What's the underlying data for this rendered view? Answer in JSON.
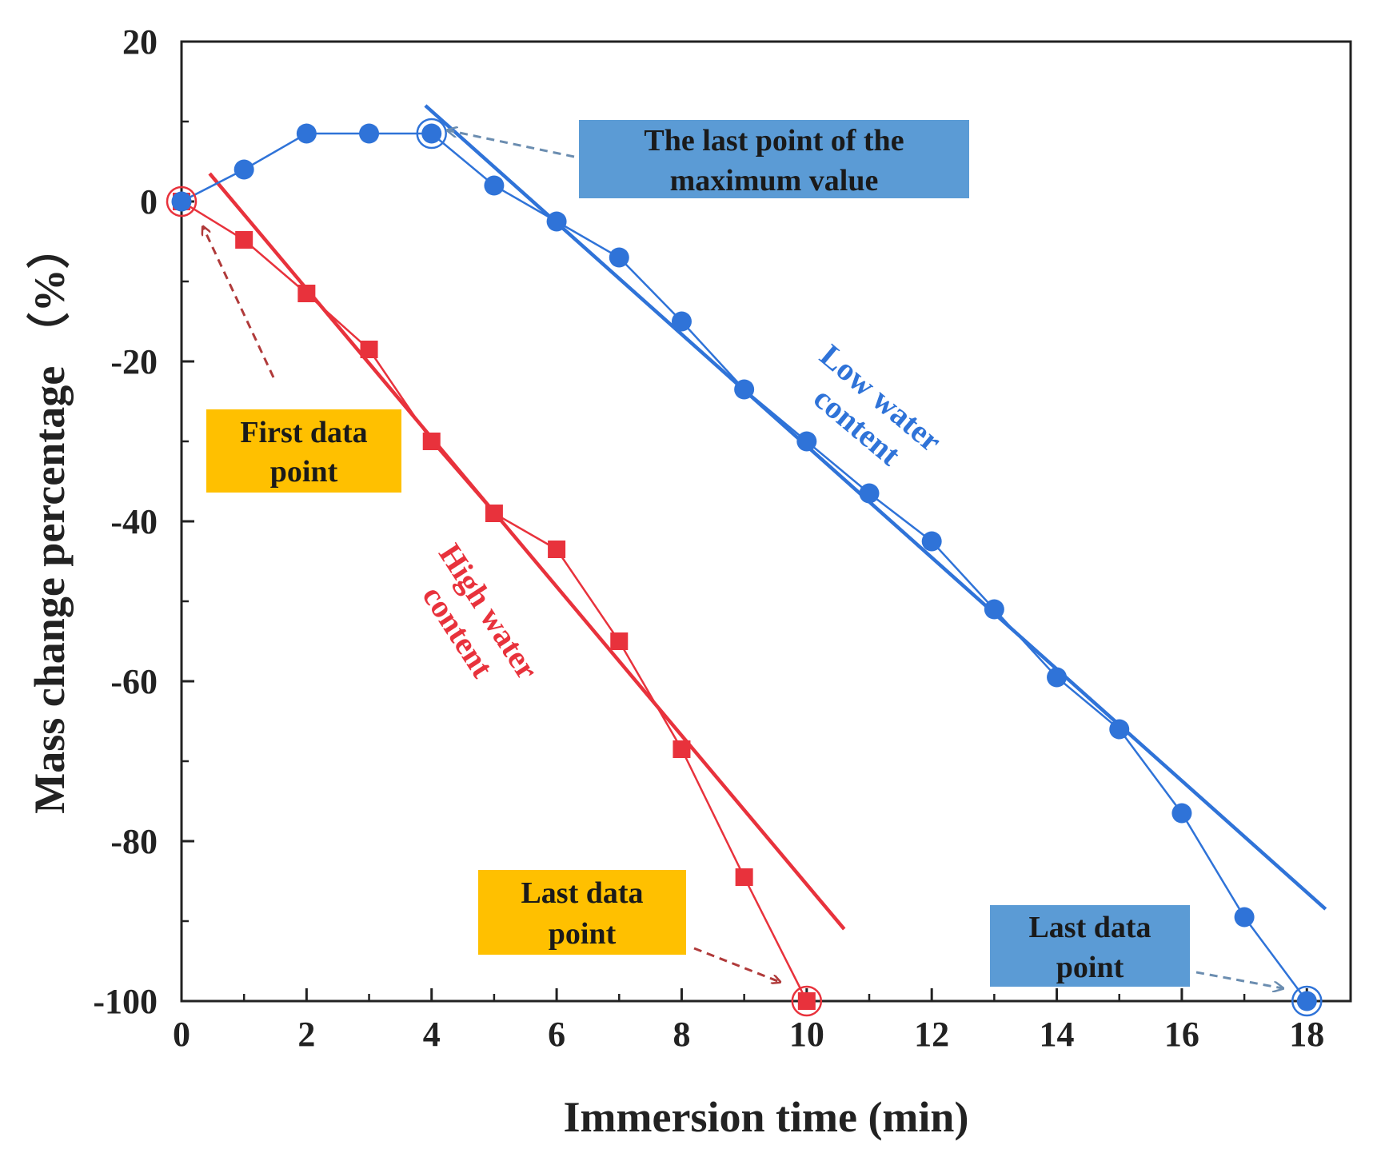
{
  "chart_data": {
    "type": "line",
    "xlabel": "Immersion time (min)",
    "ylabel": "Mass change percentage （%）",
    "xlim": [
      0,
      18.7
    ],
    "ylim": [
      -100,
      20
    ],
    "x_ticks": [
      0,
      2,
      4,
      6,
      8,
      10,
      12,
      14,
      16,
      18
    ],
    "y_ticks": [
      20,
      0,
      -20,
      -40,
      -60,
      -80,
      -100
    ],
    "grid": false,
    "series": [
      {
        "name": "High water content",
        "color": "#e8323c",
        "marker": "square",
        "x": [
          0,
          1,
          2,
          3,
          4,
          5,
          6,
          7,
          8,
          9,
          10
        ],
        "y": [
          0,
          -4.8,
          -11.5,
          -18.5,
          -30,
          -39,
          -43.5,
          -55,
          -68.5,
          -84.5,
          -100
        ],
        "fit": {
          "x": [
            0.45,
            10.6
          ],
          "y": [
            3.5,
            -91
          ]
        }
      },
      {
        "name": "Low water content",
        "color": "#2f73d8",
        "marker": "circle",
        "x": [
          0,
          1,
          2,
          3,
          4,
          5,
          6,
          7,
          8,
          9,
          10,
          11,
          12,
          13,
          14,
          15,
          16,
          17,
          18
        ],
        "y": [
          0,
          4,
          8.5,
          8.5,
          8.5,
          2,
          -2.5,
          -7,
          -15,
          -23.5,
          -30,
          -36.5,
          -42.5,
          -51,
          -59.5,
          -66,
          -76.5,
          -89.5,
          -100
        ],
        "fit": {
          "x": [
            3.9,
            18.3
          ],
          "y": [
            12,
            -88.5
          ]
        }
      }
    ],
    "annotations": [
      {
        "id": "first",
        "text_lines": [
          "First data",
          "point"
        ],
        "box_color": "#ffc000",
        "target": [
          0,
          0
        ]
      },
      {
        "id": "last-high",
        "text_lines": [
          "Last data",
          "point"
        ],
        "box_color": "#ffc000",
        "target": [
          10,
          -100
        ]
      },
      {
        "id": "max",
        "text_lines": [
          "The last point of the",
          "maximum value"
        ],
        "box_color": "#5b9bd5",
        "target": [
          4,
          8.5
        ]
      },
      {
        "id": "last-low",
        "text_lines": [
          "Last data",
          "point"
        ],
        "box_color": "#5b9bd5",
        "target": [
          18,
          -100
        ]
      }
    ],
    "series_labels": [
      {
        "series": "High water content",
        "text_lines": [
          "High water",
          "content"
        ],
        "color": "#e8323c"
      },
      {
        "series": "Low water content",
        "text_lines": [
          "Low water",
          "content"
        ],
        "color": "#2f73d8"
      }
    ]
  }
}
